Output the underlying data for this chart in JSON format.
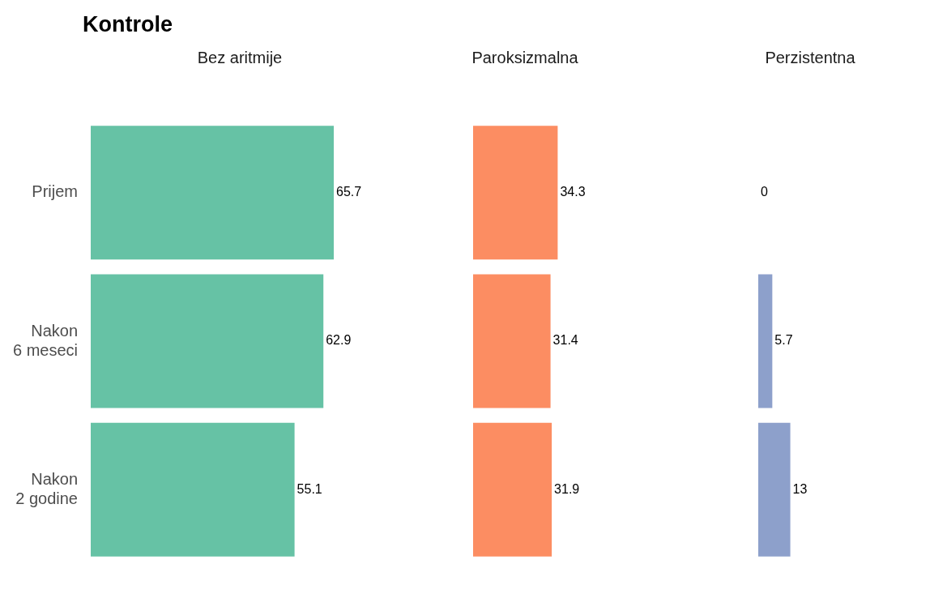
{
  "chart_data": [
    {
      "type": "bar",
      "orientation": "horizontal",
      "title": "Kontrole",
      "subtitle": "Bez aritmije",
      "categories": [
        "Prijem",
        "Nakon 6 meseci",
        "Nakon 2 godine"
      ],
      "values": [
        65.7,
        62.9,
        55.1
      ],
      "color": "#66c2a5",
      "data_labels": true,
      "tick_labels": "y"
    },
    {
      "type": "bar",
      "orientation": "horizontal",
      "subtitle": "Paroksizmalna",
      "categories": [
        null,
        null,
        null
      ],
      "values": [
        34.3,
        31.4,
        31.9
      ],
      "color": "#fc8d62",
      "data_labels": true,
      "tick_labels": false
    },
    {
      "type": "bar",
      "orientation": "horizontal",
      "subtitle": "Perzistentna",
      "categories": [
        null,
        null,
        null
      ],
      "values": [
        0,
        5.7,
        13
      ],
      "color": "#8da0cb",
      "data_labels": true,
      "tick_labels": false
    }
  ]
}
